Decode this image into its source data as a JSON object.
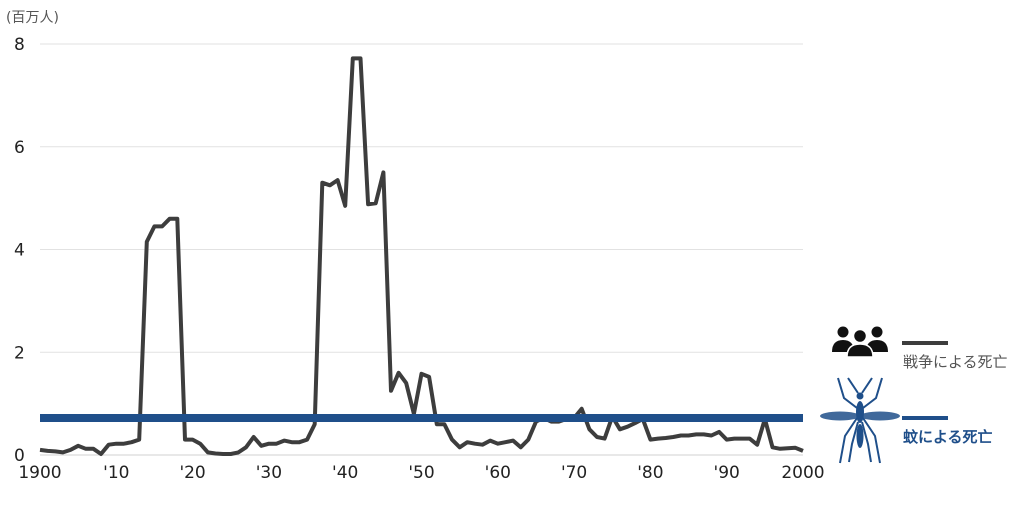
{
  "chart_data": {
    "type": "line",
    "unit_label": "(百万人)",
    "ylim": [
      0,
      8
    ],
    "xlim": [
      1900,
      2000
    ],
    "y_ticks": [
      {
        "value": 0,
        "label": "0"
      },
      {
        "value": 2,
        "label": "2"
      },
      {
        "value": 4,
        "label": "4"
      },
      {
        "value": 6,
        "label": "6"
      },
      {
        "value": 8,
        "label": "8"
      }
    ],
    "x_ticks": [
      {
        "value": 1900,
        "label": "1900"
      },
      {
        "value": 1910,
        "label": "'10"
      },
      {
        "value": 1920,
        "label": "'20"
      },
      {
        "value": 1930,
        "label": "'30"
      },
      {
        "value": 1940,
        "label": "'40"
      },
      {
        "value": 1950,
        "label": "'50"
      },
      {
        "value": 1960,
        "label": "'60"
      },
      {
        "value": 1970,
        "label": "'70"
      },
      {
        "value": 1980,
        "label": "'80"
      },
      {
        "value": 1990,
        "label": "'90"
      },
      {
        "value": 2000,
        "label": "2000"
      }
    ],
    "grid": true,
    "series": [
      {
        "name": "戦争による死亡",
        "color": "#3d3d3d",
        "icon": "people-group-icon",
        "x": [
          1900,
          1901,
          1902,
          1903,
          1904,
          1905,
          1906,
          1907,
          1908,
          1909,
          1910,
          1911,
          1912,
          1913,
          1914,
          1915,
          1916,
          1917,
          1918,
          1919,
          1920,
          1921,
          1922,
          1923,
          1924,
          1925,
          1926,
          1927,
          1928,
          1929,
          1930,
          1931,
          1932,
          1933,
          1934,
          1935,
          1936,
          1937,
          1938,
          1939,
          1940,
          1941,
          1942,
          1943,
          1944,
          1945,
          1946,
          1947,
          1948,
          1949,
          1950,
          1951,
          1952,
          1953,
          1954,
          1955,
          1956,
          1957,
          1958,
          1959,
          1960,
          1961,
          1962,
          1963,
          1964,
          1965,
          1966,
          1967,
          1968,
          1969,
          1970,
          1971,
          1972,
          1973,
          1974,
          1975,
          1976,
          1977,
          1978,
          1979,
          1980,
          1981,
          1982,
          1983,
          1984,
          1985,
          1986,
          1987,
          1988,
          1989,
          1990,
          1991,
          1992,
          1993,
          1994,
          1995,
          1996,
          1997,
          1998,
          1999,
          2000
        ],
        "values": [
          0.1,
          0.08,
          0.07,
          0.05,
          0.1,
          0.18,
          0.12,
          0.12,
          0.02,
          0.2,
          0.22,
          0.22,
          0.25,
          0.3,
          4.15,
          4.45,
          4.45,
          4.6,
          4.6,
          0.3,
          0.3,
          0.22,
          0.05,
          0.03,
          0.02,
          0.02,
          0.05,
          0.15,
          0.35,
          0.18,
          0.22,
          0.22,
          0.28,
          0.25,
          0.25,
          0.3,
          0.6,
          5.3,
          5.25,
          5.35,
          4.85,
          7.72,
          7.72,
          4.88,
          4.9,
          5.5,
          1.25,
          1.6,
          1.4,
          0.8,
          1.58,
          1.52,
          0.6,
          0.6,
          0.3,
          0.15,
          0.25,
          0.22,
          0.2,
          0.28,
          0.22,
          0.25,
          0.28,
          0.15,
          0.3,
          0.65,
          0.72,
          0.65,
          0.65,
          0.7,
          0.72,
          0.9,
          0.5,
          0.35,
          0.32,
          0.75,
          0.5,
          0.55,
          0.62,
          0.7,
          0.3,
          0.32,
          0.33,
          0.35,
          0.38,
          0.38,
          0.4,
          0.4,
          0.38,
          0.45,
          0.3,
          0.32,
          0.32,
          0.32,
          0.2,
          0.7,
          0.15,
          0.12,
          0.13,
          0.14,
          0.08
        ]
      },
      {
        "name": "蚊による死亡",
        "color": "#1f4f8a",
        "icon": "mosquito-icon",
        "x": [
          1900,
          2000
        ],
        "values": [
          0.72,
          0.72
        ]
      }
    ]
  }
}
